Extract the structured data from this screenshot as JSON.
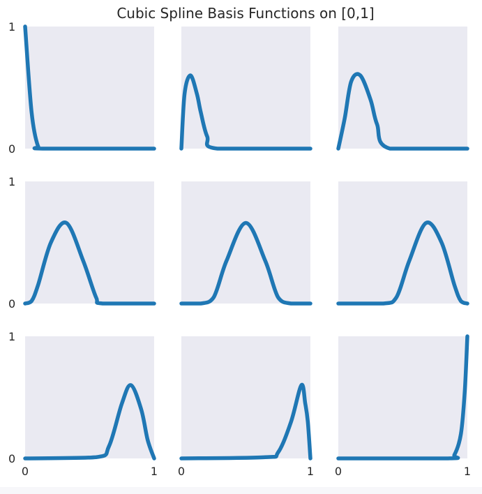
{
  "chart_data": {
    "type": "line",
    "title": "Cubic Spline Basis Functions on [0,1]",
    "layout": "3x3 grid of subplots, shared axes",
    "xlim": [
      0,
      1
    ],
    "ylim": [
      0,
      1
    ],
    "x_tick_labels": [
      "0",
      "1"
    ],
    "y_tick_labels": [
      "0",
      "1"
    ],
    "grid": false,
    "line_color": "#1f77b4",
    "panel_background": "#eaeaf2",
    "panels": [
      {
        "x": [
          0,
          0.05,
          0.1,
          0.15,
          1
        ],
        "y": [
          1,
          0.3,
          0.02,
          0,
          0
        ]
      },
      {
        "x": [
          0,
          0.025,
          0.07,
          0.12,
          0.15,
          0.2,
          0.28,
          1
        ],
        "y": [
          0,
          0.45,
          0.6,
          0.45,
          0.3,
          0.1,
          0,
          0
        ]
      },
      {
        "x": [
          0,
          0.05,
          0.1,
          0.17,
          0.25,
          0.3,
          0.4,
          1
        ],
        "y": [
          0,
          0.25,
          0.55,
          0.6,
          0.4,
          0.2,
          0,
          0
        ]
      },
      {
        "x": [
          0,
          0.05,
          0.1,
          0.2,
          0.32,
          0.45,
          0.55,
          0.6,
          1
        ],
        "y": [
          0,
          0.02,
          0.15,
          0.5,
          0.66,
          0.35,
          0.05,
          0,
          0
        ]
      },
      {
        "x": [
          0,
          0.15,
          0.25,
          0.35,
          0.5,
          0.65,
          0.75,
          0.85,
          1
        ],
        "y": [
          0,
          0,
          0.05,
          0.35,
          0.66,
          0.35,
          0.05,
          0,
          0
        ]
      },
      {
        "x": [
          0,
          0.35,
          0.45,
          0.55,
          0.68,
          0.8,
          0.9,
          0.95,
          1
        ],
        "y": [
          0,
          0,
          0.05,
          0.35,
          0.66,
          0.5,
          0.15,
          0.02,
          0
        ]
      },
      {
        "x": [
          0,
          0.55,
          0.65,
          0.75,
          0.82,
          0.9,
          0.95,
          1
        ],
        "y": [
          0,
          0.01,
          0.1,
          0.45,
          0.6,
          0.4,
          0.15,
          0
        ]
      },
      {
        "x": [
          0,
          0.65,
          0.75,
          0.85,
          0.93,
          0.96,
          0.98,
          1
        ],
        "y": [
          0,
          0.01,
          0.05,
          0.3,
          0.6,
          0.45,
          0.3,
          0
        ]
      },
      {
        "x": [
          0,
          0.85,
          0.9,
          0.95,
          0.98,
          1
        ],
        "y": [
          0,
          0,
          0.03,
          0.2,
          0.55,
          1
        ]
      }
    ]
  }
}
